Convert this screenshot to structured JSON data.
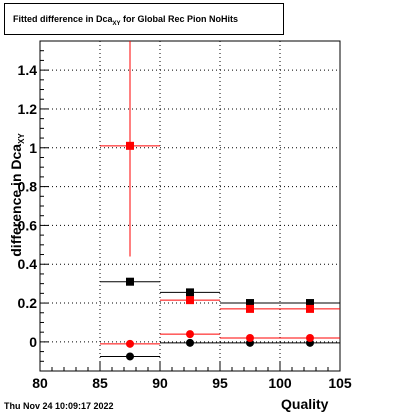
{
  "chart_data": {
    "type": "scatter",
    "title_prefix": "Fitted difference in Dca",
    "title_sub": "XY",
    "title_suffix": " for Global Rec Pion NoHits",
    "xlabel": "Quality",
    "ylabel_main": "difference in Dca",
    "ylabel_sub": "XY",
    "xlim": [
      80,
      105
    ],
    "ylim": [
      -0.15,
      1.55
    ],
    "x_ticks": [
      80,
      85,
      90,
      95,
      100,
      105
    ],
    "y_ticks": [
      0,
      0.2,
      0.4,
      0.6,
      0.8,
      1,
      1.2,
      1.4
    ],
    "grid": true,
    "series": [
      {
        "color": "#000000",
        "marker": "square",
        "points": [
          {
            "x": 87.5,
            "y": 0.31,
            "xerr": 2.5,
            "yerr": 0
          },
          {
            "x": 92.5,
            "y": 0.255,
            "xerr": 2.5,
            "yerr": 0
          },
          {
            "x": 97.5,
            "y": 0.2,
            "xerr": 2.5,
            "yerr": 0
          },
          {
            "x": 102.5,
            "y": 0.2,
            "xerr": 2.5,
            "yerr": 0
          }
        ]
      },
      {
        "color": "#ff0000",
        "marker": "square",
        "points": [
          {
            "x": 87.5,
            "y": 1.01,
            "xerr": 2.5,
            "yerr": 0.57
          },
          {
            "x": 92.5,
            "y": 0.215,
            "xerr": 2.5,
            "yerr": 0
          },
          {
            "x": 97.5,
            "y": 0.17,
            "xerr": 2.5,
            "yerr": 0
          },
          {
            "x": 102.5,
            "y": 0.17,
            "xerr": 2.5,
            "yerr": 0
          }
        ]
      },
      {
        "color": "#000000",
        "marker": "circle",
        "points": [
          {
            "x": 87.5,
            "y": -0.075,
            "xerr": 2.5,
            "yerr": 0
          },
          {
            "x": 92.5,
            "y": -0.005,
            "xerr": 2.5,
            "yerr": 0
          },
          {
            "x": 97.5,
            "y": -0.005,
            "xerr": 2.5,
            "yerr": 0
          },
          {
            "x": 102.5,
            "y": -0.005,
            "xerr": 2.5,
            "yerr": 0
          }
        ]
      },
      {
        "color": "#ff0000",
        "marker": "circle",
        "points": [
          {
            "x": 87.5,
            "y": -0.01,
            "xerr": 2.5,
            "yerr": 0
          },
          {
            "x": 92.5,
            "y": 0.04,
            "xerr": 2.5,
            "yerr": 0
          },
          {
            "x": 97.5,
            "y": 0.02,
            "xerr": 2.5,
            "yerr": 0
          },
          {
            "x": 102.5,
            "y": 0.02,
            "xerr": 2.5,
            "yerr": 0
          }
        ]
      }
    ]
  },
  "footer": {
    "timestamp": "Thu Nov 24 10:09:17 2022"
  }
}
